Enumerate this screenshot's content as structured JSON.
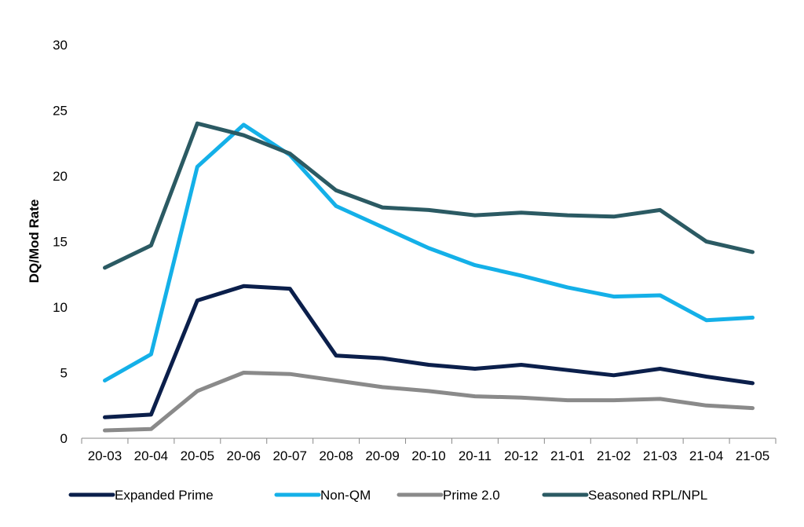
{
  "chart_data": {
    "type": "line",
    "title": "",
    "xlabel": "",
    "ylabel": "DQ/Mod Rate",
    "ylim": [
      0,
      30
    ],
    "yticks": [
      0,
      5,
      10,
      15,
      20,
      25,
      30
    ],
    "grid": false,
    "legend_position": "bottom",
    "categories": [
      "20-03",
      "20-04",
      "20-05",
      "20-06",
      "20-07",
      "20-08",
      "20-09",
      "20-10",
      "20-11",
      "20-12",
      "21-01",
      "21-02",
      "21-03",
      "21-04",
      "21-05"
    ],
    "series": [
      {
        "name": "Expanded Prime",
        "color": "#0b1f4b",
        "values": [
          1.6,
          1.8,
          10.5,
          11.6,
          11.4,
          6.3,
          6.1,
          5.6,
          5.3,
          5.6,
          5.2,
          4.8,
          5.3,
          4.7,
          4.2
        ]
      },
      {
        "name": "Non-QM",
        "color": "#14b0e8",
        "values": [
          4.4,
          6.4,
          20.7,
          23.9,
          21.6,
          17.7,
          16.1,
          14.5,
          13.2,
          12.4,
          11.5,
          10.8,
          10.9,
          9.0,
          9.2
        ]
      },
      {
        "name": "Prime 2.0",
        "color": "#8a8a8a",
        "values": [
          0.6,
          0.7,
          3.6,
          5.0,
          4.9,
          4.4,
          3.9,
          3.6,
          3.2,
          3.1,
          2.9,
          2.9,
          3.0,
          2.5,
          2.3
        ]
      },
      {
        "name": "Seasoned RPL/NPL",
        "color": "#2b5a63",
        "values": [
          13.0,
          14.7,
          24.0,
          23.1,
          21.7,
          18.9,
          17.6,
          17.4,
          17.0,
          17.2,
          17.0,
          16.9,
          17.4,
          15.0,
          14.2
        ]
      }
    ]
  }
}
